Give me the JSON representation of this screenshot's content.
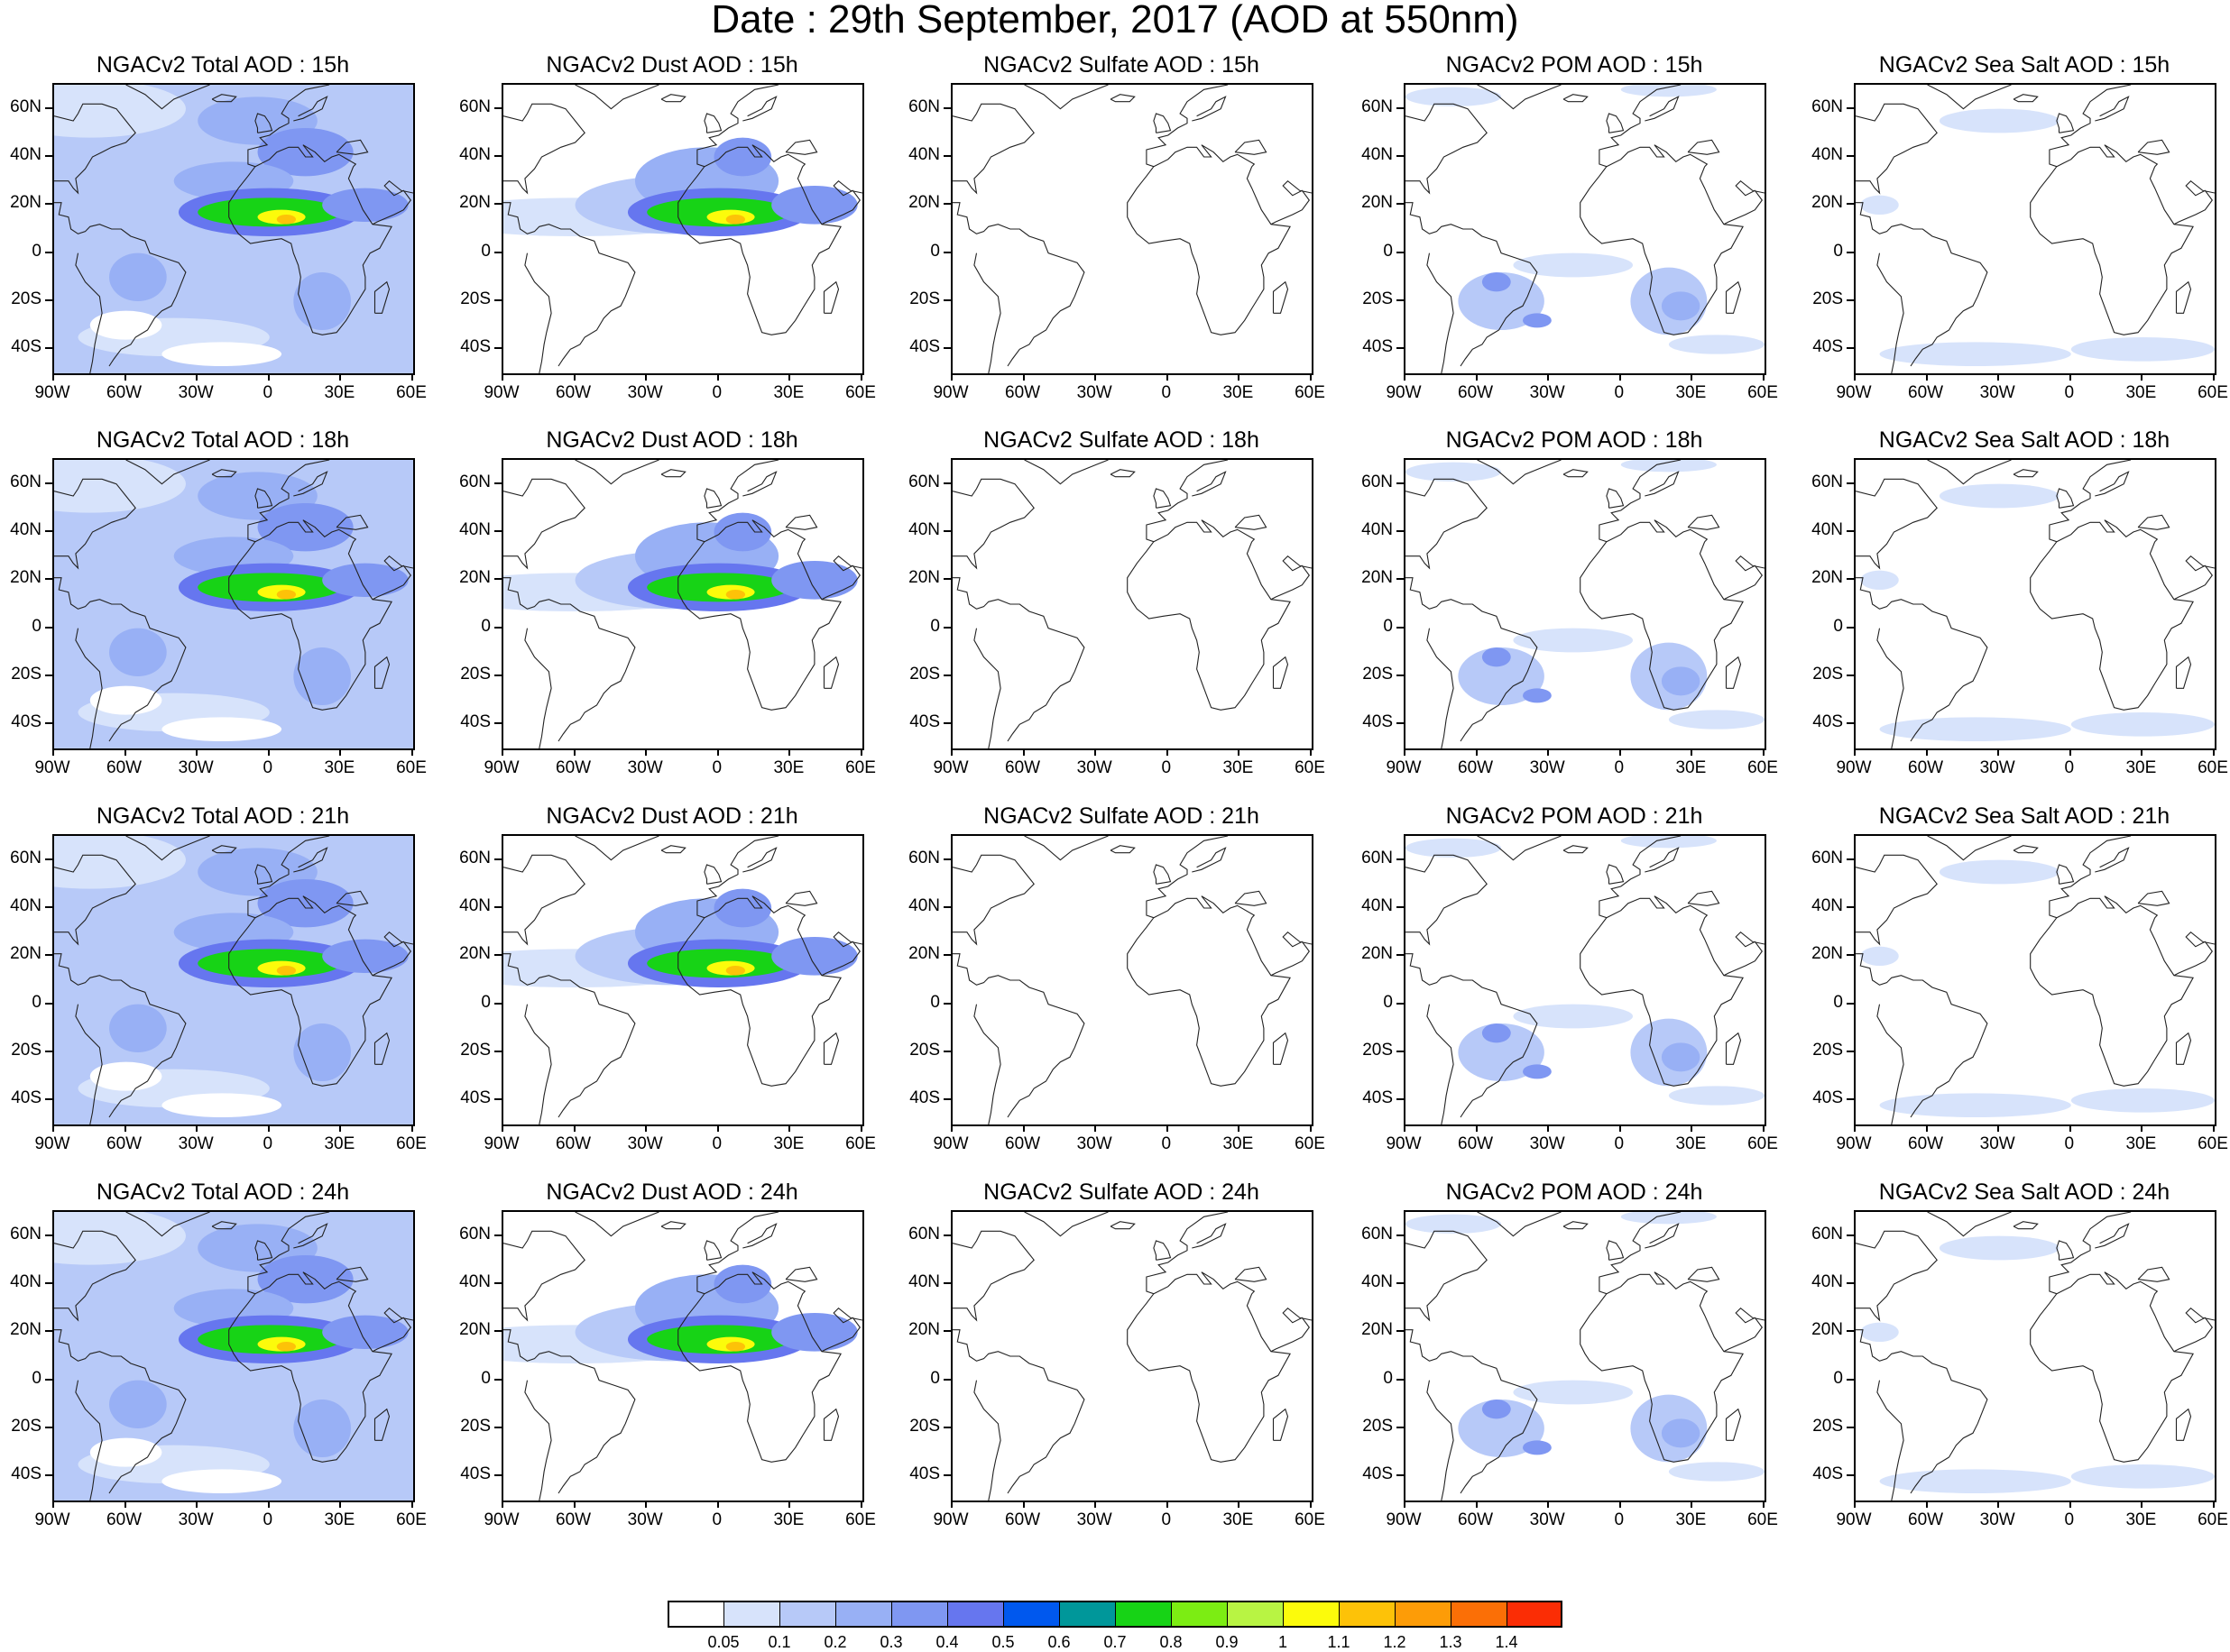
{
  "title": "Date : 29th September, 2017 (AOD at 550nm)",
  "panels": [
    [
      "NGACv2 Total AOD : 15h",
      "NGACv2 Dust AOD : 15h",
      "NGACv2 Sulfate AOD : 15h",
      "NGACv2 POM AOD : 15h",
      "NGACv2 Sea Salt AOD : 15h"
    ],
    [
      "NGACv2 Total AOD : 18h",
      "NGACv2 Dust AOD : 18h",
      "NGACv2 Sulfate AOD : 18h",
      "NGACv2 POM AOD : 18h",
      "NGACv2 Sea Salt AOD : 18h"
    ],
    [
      "NGACv2 Total AOD : 21h",
      "NGACv2 Dust AOD : 21h",
      "NGACv2 Sulfate AOD : 21h",
      "NGACv2 POM AOD : 21h",
      "NGACv2 Sea Salt AOD : 21h"
    ],
    [
      "NGACv2 Total AOD : 24h",
      "NGACv2 Dust AOD : 24h",
      "NGACv2 Sulfate AOD : 24h",
      "NGACv2 POM AOD : 24h",
      "NGACv2 Sea Salt  AOD : 24h"
    ]
  ],
  "lat_labels": [
    "60N",
    "40N",
    "20N",
    "0",
    "20S",
    "40S"
  ],
  "lon_labels": [
    "90W",
    "60W",
    "30W",
    "0",
    "30E",
    "60E"
  ],
  "colorbar": {
    "colors": [
      "#ffffff",
      "#d7e3fb",
      "#b7c9f8",
      "#98b0f5",
      "#7f97f2",
      "#6676ef",
      "#0058ee",
      "#00979a",
      "#17d316",
      "#7ced13",
      "#b8f443",
      "#fcfb0b",
      "#fdc208",
      "#fd9c07",
      "#fb6f06",
      "#fb2d05"
    ],
    "labels": [
      "0.05",
      "0.1",
      "0.2",
      "0.3",
      "0.4",
      "0.5",
      "0.6",
      "0.7",
      "0.8",
      "0.9",
      "1",
      "1.1",
      "1.2",
      "1.3",
      "1.4"
    ]
  }
}
